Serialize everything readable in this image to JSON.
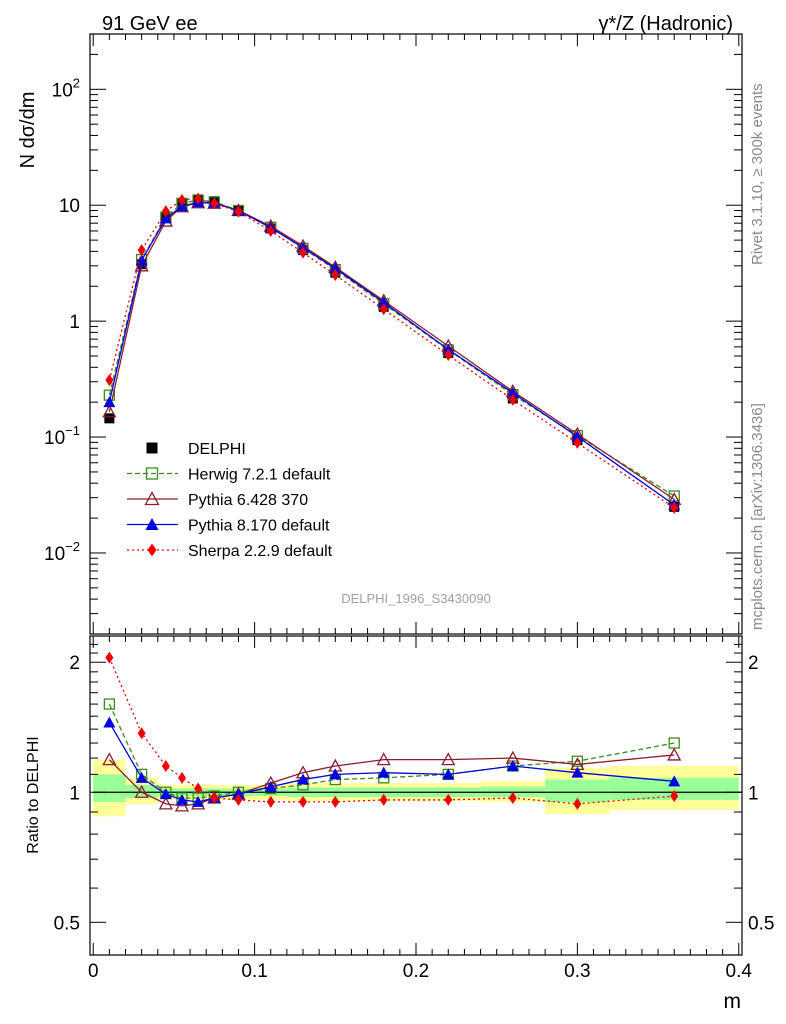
{
  "header": {
    "left_title": "91 GeV ee",
    "right_title": "γ*/Z (Hadronic)"
  },
  "side": {
    "rivet": "Rivet 3.1.10, ≥ 300k events",
    "mcplots": "mcplots.cern.ch [arXiv:1306.3436]"
  },
  "watermark": "DELPHI_1996_S3430090",
  "chart_data": [
    {
      "type": "line",
      "panel": "main",
      "ylabel": "N dσ/dm",
      "yscale": "log",
      "ylim": [
        0.002,
        300
      ],
      "xlim": [
        -0.002,
        0.402
      ],
      "y_tick_labels": [
        {
          "v": 100,
          "base": "10",
          "exp": "2"
        },
        {
          "v": 10,
          "text": "10"
        },
        {
          "v": 1,
          "text": "1"
        },
        {
          "v": 0.1,
          "base": "10",
          "exp": "−1"
        },
        {
          "v": 0.01,
          "base": "10",
          "exp": "−2"
        }
      ],
      "x": [
        0.01,
        0.03,
        0.045,
        0.055,
        0.065,
        0.075,
        0.09,
        0.11,
        0.13,
        0.15,
        0.18,
        0.22,
        0.26,
        0.3,
        0.36
      ],
      "series": [
        {
          "name": "DELPHI",
          "color": "#000000",
          "marker": "square-filled",
          "dash": "none",
          "values": [
            0.145,
            3.1,
            7.8,
            10.3,
            11.2,
            10.8,
            9.1,
            6.3,
            4.1,
            2.62,
            1.33,
            0.53,
            0.215,
            0.094,
            0.025
          ]
        },
        {
          "name": "Herwig 7.2.1 default",
          "color": "#3a8c1c",
          "marker": "square-open",
          "dash": "5,3",
          "values": [
            0.23,
            3.4,
            7.9,
            10.4,
            11.1,
            10.7,
            9.0,
            6.45,
            4.25,
            2.78,
            1.41,
            0.565,
            0.232,
            0.103,
            0.031
          ]
        },
        {
          "name": "Pythia 6.428 370",
          "color": "#8c1c2c",
          "marker": "triangle-open",
          "dash": "none",
          "values": [
            0.165,
            3.0,
            7.3,
            9.7,
            10.5,
            10.4,
            9.0,
            6.6,
            4.45,
            2.92,
            1.5,
            0.61,
            0.248,
            0.106,
            0.029
          ]
        },
        {
          "name": "Pythia 8.170 default",
          "color": "#0000e0",
          "marker": "triangle-filled",
          "dash": "none",
          "values": [
            0.2,
            3.35,
            7.7,
            9.8,
            10.6,
            10.5,
            8.95,
            6.4,
            4.3,
            2.85,
            1.45,
            0.57,
            0.24,
            0.101,
            0.026
          ]
        },
        {
          "name": "Sherpa 2.2.9 default",
          "color": "#ee0000",
          "marker": "diamond-filled",
          "dash": "2,3",
          "values": [
            0.31,
            4.1,
            8.9,
            11.1,
            11.4,
            10.4,
            8.8,
            6.0,
            3.9,
            2.5,
            1.27,
            0.51,
            0.21,
            0.089,
            0.0245
          ]
        }
      ]
    },
    {
      "type": "line",
      "panel": "ratio",
      "ylabel": "Ratio to DELPHI",
      "xlabel": "m",
      "ylim": [
        0.42,
        2.3
      ],
      "xlim": [
        -0.002,
        0.402
      ],
      "y_ticks": [
        0.5,
        1,
        2
      ],
      "y_tick_labels": [
        "0.5",
        "1",
        "2"
      ],
      "x_ticks": [
        0,
        0.1,
        0.2,
        0.3,
        0.4
      ],
      "x_tick_labels": [
        "0",
        "0.1",
        "0.2",
        "0.3",
        "0.4"
      ],
      "reference_line": 1,
      "bands": [
        {
          "x0": 0.0,
          "x1": 0.02,
          "yellow": [
            0.88,
            1.19
          ],
          "green": [
            0.95,
            1.1
          ]
        },
        {
          "x0": 0.02,
          "x1": 0.04,
          "yellow": [
            0.94,
            1.08
          ],
          "green": [
            0.97,
            1.04
          ]
        },
        {
          "x0": 0.04,
          "x1": 0.12,
          "yellow": [
            0.96,
            1.04
          ],
          "green": [
            0.98,
            1.02
          ]
        },
        {
          "x0": 0.12,
          "x1": 0.24,
          "yellow": [
            0.955,
            1.05
          ],
          "green": [
            0.975,
            1.025
          ]
        },
        {
          "x0": 0.24,
          "x1": 0.28,
          "yellow": [
            0.95,
            1.06
          ],
          "green": [
            0.975,
            1.03
          ]
        },
        {
          "x0": 0.28,
          "x1": 0.32,
          "yellow": [
            0.89,
            1.14
          ],
          "green": [
            0.95,
            1.07
          ]
        },
        {
          "x0": 0.32,
          "x1": 0.4,
          "yellow": [
            0.91,
            1.15
          ],
          "green": [
            0.96,
            1.08
          ]
        }
      ],
      "x": [
        0.01,
        0.03,
        0.045,
        0.055,
        0.065,
        0.075,
        0.09,
        0.11,
        0.13,
        0.15,
        0.18,
        0.22,
        0.26,
        0.3,
        0.36
      ],
      "series": [
        {
          "name": "Herwig 7.2.1 default",
          "color": "#3a8c1c",
          "marker": "square-open",
          "dash": "5,3",
          "values": [
            1.6,
            1.1,
            1.0,
            0.97,
            0.97,
            0.98,
            1.0,
            1.02,
            1.04,
            1.07,
            1.08,
            1.1,
            1.15,
            1.18,
            1.3
          ]
        },
        {
          "name": "Pythia 6.428 370",
          "color": "#8c1c2c",
          "marker": "triangle-open",
          "dash": "none",
          "values": [
            1.19,
            1.0,
            0.94,
            0.93,
            0.94,
            0.97,
            0.99,
            1.05,
            1.11,
            1.15,
            1.19,
            1.19,
            1.2,
            1.16,
            1.22
          ]
        },
        {
          "name": "Pythia 8.170 default",
          "color": "#0000e0",
          "marker": "triangle-filled",
          "dash": "none",
          "values": [
            1.45,
            1.08,
            0.99,
            0.96,
            0.95,
            0.97,
            0.99,
            1.03,
            1.07,
            1.1,
            1.11,
            1.1,
            1.15,
            1.11,
            1.06
          ]
        },
        {
          "name": "Sherpa 2.2.9 default",
          "color": "#ee0000",
          "marker": "diamond-filled",
          "dash": "2,3",
          "values": [
            2.05,
            1.37,
            1.15,
            1.08,
            1.02,
            0.97,
            0.96,
            0.95,
            0.95,
            0.95,
            0.96,
            0.96,
            0.97,
            0.94,
            0.98
          ]
        }
      ]
    }
  ]
}
